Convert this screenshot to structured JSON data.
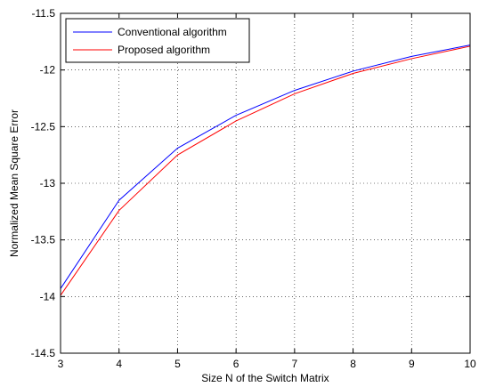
{
  "chart_data": {
    "type": "line",
    "title": "",
    "xlabel": "Size N of the Switch Matrix",
    "ylabel": "Normalized Mean Square Error",
    "xlim": [
      3,
      10
    ],
    "ylim": [
      -14.5,
      -11.5
    ],
    "xticks": [
      3,
      4,
      5,
      6,
      7,
      8,
      9,
      10
    ],
    "xtick_labels": [
      "3",
      "4",
      "5",
      "6",
      "7",
      "8",
      "9",
      "10"
    ],
    "yticks": [
      -11.5,
      -12,
      -12.5,
      -13,
      -13.5,
      -14,
      -14.5
    ],
    "ytick_labels": [
      "-11.5",
      "-12",
      "-12.5",
      "-13",
      "-13.5",
      "-14",
      "-14.5"
    ],
    "grid": true,
    "legend_position": "top-left",
    "x": [
      3,
      4,
      5,
      6,
      7,
      8,
      9,
      10
    ],
    "series": [
      {
        "name": "Conventional algorithm",
        "color": "#0000ff",
        "values": [
          -13.93,
          -13.15,
          -12.69,
          -12.4,
          -12.18,
          -12.01,
          -11.88,
          -11.78
        ]
      },
      {
        "name": "Proposed algorithm",
        "color": "#ff0000",
        "values": [
          -13.99,
          -13.24,
          -12.75,
          -12.45,
          -12.21,
          -12.03,
          -11.9,
          -11.79
        ]
      }
    ]
  }
}
